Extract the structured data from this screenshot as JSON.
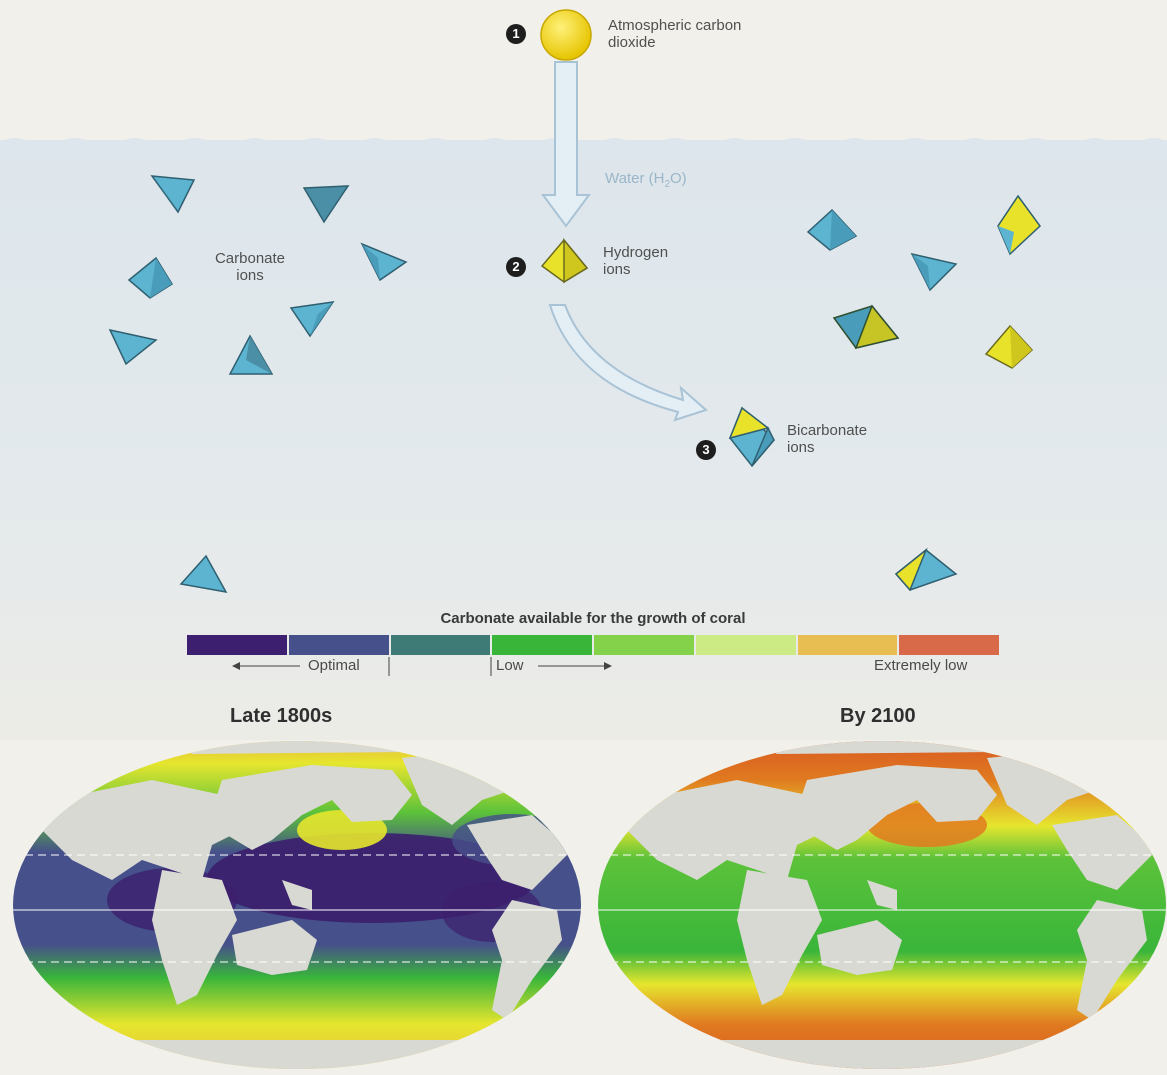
{
  "diagram": {
    "atmospheric_co2_label": "Atmospheric carbon dioxide",
    "water_label": "Water (H",
    "water_sub": "2",
    "water_close": "O)",
    "hydrogen_label": "Hydrogen ions",
    "carbonate_label": "Carbonate ions",
    "bicarbonate_label": "Bicarbonate ions",
    "step_numbers": [
      "1",
      "2",
      "3"
    ]
  },
  "scale": {
    "title": "Carbonate available for the growth of coral",
    "colors": [
      "#3c1f6e",
      "#46508a",
      "#3f7b76",
      "#39b53a",
      "#84d24a",
      "#cdeb84",
      "#e8bd52",
      "#d86a4a"
    ],
    "optimal_label": "Optimal",
    "low_label": "Low",
    "extremely_low_label": "Extremely low"
  },
  "maps": {
    "left_title": "Late 1800s",
    "right_title": "By 2100",
    "colors": {
      "land": "#d9d9d3",
      "violet": "#3c1f6e",
      "blue": "#46508a",
      "green": "#39b53a",
      "yellow": "#e8e82a",
      "orange": "#e07a20",
      "red_orange": "#d85a22"
    }
  }
}
